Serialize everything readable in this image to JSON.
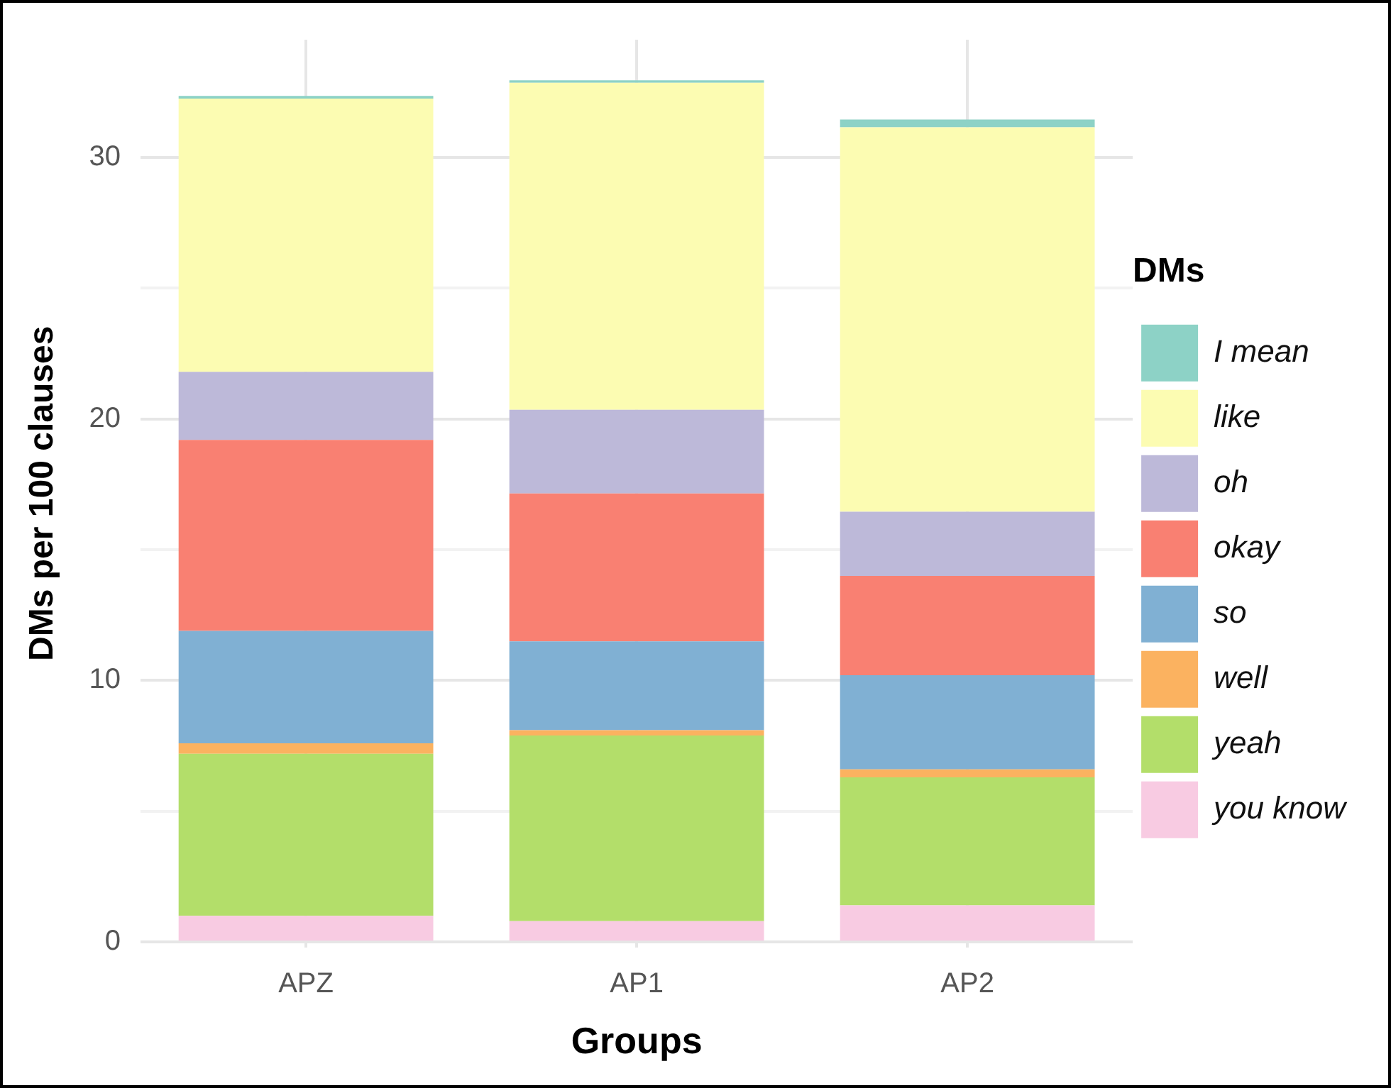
{
  "chart_data": {
    "type": "bar",
    "stacked": true,
    "xlabel": "Groups",
    "ylabel": "DMs per 100 clauses",
    "legend_title": "DMs",
    "legend": "right",
    "grid": true,
    "categories": [
      "APZ",
      "AP1",
      "AP2"
    ],
    "ylim": [
      -0.2,
      34.5
    ],
    "yticks": [
      0,
      {
        "value": 5,
        "label": null
      },
      10,
      {
        "value": 15,
        "label": null
      },
      20,
      {
        "value": 25,
        "label": null
      },
      30
    ],
    "series": [
      {
        "name": "you know",
        "color": "#f8cbe2",
        "values": [
          1.0,
          0.8,
          1.4
        ]
      },
      {
        "name": "yeah",
        "color": "#b3de6a",
        "values": [
          6.2,
          7.1,
          4.9
        ]
      },
      {
        "name": "well",
        "color": "#fbb260",
        "values": [
          0.4,
          0.2,
          0.3
        ]
      },
      {
        "name": "so",
        "color": "#80b0d3",
        "values": [
          4.3,
          3.4,
          3.6
        ]
      },
      {
        "name": "okay",
        "color": "#f98072",
        "values": [
          7.3,
          5.65,
          3.8
        ]
      },
      {
        "name": "oh",
        "color": "#bdb9d9",
        "values": [
          2.6,
          3.2,
          2.45
        ]
      },
      {
        "name": "like",
        "color": "#fcfcb2",
        "values": [
          10.45,
          12.5,
          14.7
        ]
      },
      {
        "name": "I mean",
        "color": "#8dd2c6",
        "values": [
          0.1,
          0.1,
          0.3
        ]
      }
    ]
  }
}
